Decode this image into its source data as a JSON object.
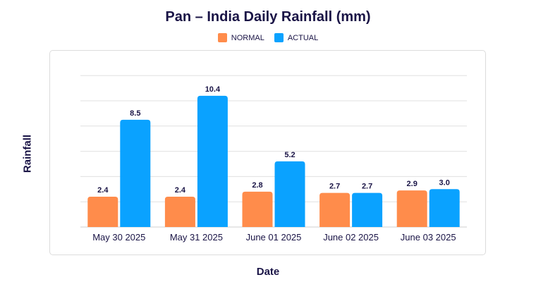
{
  "chart_data": {
    "type": "bar",
    "title": "Pan – India Daily Rainfall (mm)",
    "xlabel": "Date",
    "ylabel": "Rainfall",
    "categories": [
      "May 30 2025",
      "May 31 2025",
      "June 01 2025",
      "June 02 2025",
      "June 03 2025"
    ],
    "series": [
      {
        "name": "NORMAL",
        "color": "#ff8c4b",
        "values": [
          2.4,
          2.4,
          2.8,
          2.7,
          2.9
        ],
        "labels": [
          "2.4",
          "2.4",
          "2.8",
          "2.7",
          "2.9"
        ]
      },
      {
        "name": "ACTUAL",
        "color": "#0aa2ff",
        "values": [
          8.5,
          10.4,
          5.2,
          2.7,
          3.0
        ],
        "labels": [
          "8.5",
          "10.4",
          "5.2",
          "2.7",
          "3.0"
        ]
      }
    ],
    "ylim": [
      0,
      12
    ],
    "grid": true,
    "legend_position": "top-center",
    "gridline_color": "#e0e0e0"
  }
}
